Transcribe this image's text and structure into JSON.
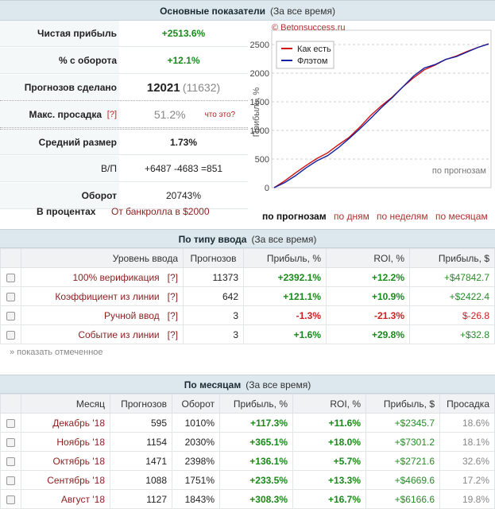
{
  "main": {
    "title": "Основные показатели",
    "subtitle": "(За все время)",
    "stats": [
      {
        "label": "Чистая прибыль",
        "value": "+2513.6%"
      },
      {
        "label": "% с оборота",
        "value": "+12.1%"
      },
      {
        "label": "Прогнозов сделано",
        "value": "12021",
        "extra": "(11632)"
      },
      {
        "label": "Макс. просадка",
        "help": "[?]",
        "value": "51.2%",
        "link": "что это?"
      },
      {
        "label": "Средний размер",
        "value": "1.73%"
      },
      {
        "label": "В/П",
        "value": "+6487 -4683 =851"
      },
      {
        "label": "Оборот",
        "value": "20743%"
      }
    ],
    "percent_label": "В процентах",
    "bankroll_label": "От банкролла в $2000"
  },
  "chart": {
    "watermark": "© Betonsuccess.ru",
    "tabs": [
      "по прогнозам",
      "по дням",
      "по неделям",
      "по месяцам"
    ],
    "active_tab": "по прогнозам",
    "colors": {
      "series1": "#d01010",
      "series2": "#1020a0"
    }
  },
  "chart_data": {
    "type": "line",
    "title": "",
    "xlabel": "по прогнозам",
    "ylabel": "Прибыль, %",
    "ylim": [
      0,
      2750
    ],
    "yticks": [
      0,
      500,
      1000,
      1500,
      2000,
      2500
    ],
    "x": [
      0,
      0.05,
      0.1,
      0.15,
      0.2,
      0.25,
      0.3,
      0.35,
      0.4,
      0.45,
      0.5,
      0.55,
      0.6,
      0.65,
      0.7,
      0.75,
      0.8,
      0.85,
      0.9,
      0.95,
      1.0
    ],
    "series": [
      {
        "name": "Как есть",
        "values": [
          0,
          120,
          260,
          390,
          510,
          610,
          750,
          880,
          1060,
          1260,
          1430,
          1580,
          1760,
          1920,
          2060,
          2140,
          2240,
          2300,
          2380,
          2450,
          2514
        ]
      },
      {
        "name": "Флэтом",
        "values": [
          0,
          90,
          210,
          350,
          470,
          560,
          700,
          860,
          1030,
          1210,
          1400,
          1570,
          1760,
          1950,
          2090,
          2150,
          2240,
          2290,
          2370,
          2450,
          2510
        ]
      }
    ]
  },
  "by_type": {
    "title": "По типу ввода",
    "subtitle": "(За все время)",
    "headers": [
      "Уровень ввода",
      "Прогнозов",
      "Прибыль, %",
      "ROI, %",
      "Прибыль, $"
    ],
    "rows": [
      {
        "name": "100% верификация",
        "help": "[?]",
        "count": "11373",
        "profit": "+2392.1%",
        "roi": "+12.2%",
        "usd": "+$47842.7"
      },
      {
        "name": "Коэффициент из линии",
        "help": "[?]",
        "count": "642",
        "profit": "+121.1%",
        "roi": "+10.9%",
        "usd": "+$2422.4"
      },
      {
        "name": "Ручной ввод",
        "help": "[?]",
        "count": "3",
        "profit": "-1.3%",
        "roi": "-21.3%",
        "usd": "$-26.8"
      },
      {
        "name": "Событие из линии",
        "help": "[?]",
        "count": "3",
        "profit": "+1.6%",
        "roi": "+29.8%",
        "usd": "+$32.8"
      }
    ],
    "show_selected": "» показать отмеченное"
  },
  "by_month": {
    "title": "По месяцам",
    "subtitle": "(За все время)",
    "headers": [
      "Месяц",
      "Прогнозов",
      "Оборот",
      "Прибыль, %",
      "ROI, %",
      "Прибыль, $",
      "Просадка"
    ],
    "rows": [
      {
        "month": "Декабрь '18",
        "count": "595",
        "turnover": "1010%",
        "profit": "+117.3%",
        "roi": "+11.6%",
        "usd": "+$2345.7",
        "dd": "18.6%"
      },
      {
        "month": "Ноябрь '18",
        "count": "1154",
        "turnover": "2030%",
        "profit": "+365.1%",
        "roi": "+18.0%",
        "usd": "+$7301.2",
        "dd": "18.1%"
      },
      {
        "month": "Октябрь '18",
        "count": "1471",
        "turnover": "2398%",
        "profit": "+136.1%",
        "roi": "+5.7%",
        "usd": "+$2721.6",
        "dd": "32.6%"
      },
      {
        "month": "Сентябрь '18",
        "count": "1088",
        "turnover": "1751%",
        "profit": "+233.5%",
        "roi": "+13.3%",
        "usd": "+$4669.6",
        "dd": "17.2%"
      },
      {
        "month": "Август '18",
        "count": "1127",
        "turnover": "1843%",
        "profit": "+308.3%",
        "roi": "+16.7%",
        "usd": "+$6166.6",
        "dd": "19.8%"
      }
    ]
  }
}
